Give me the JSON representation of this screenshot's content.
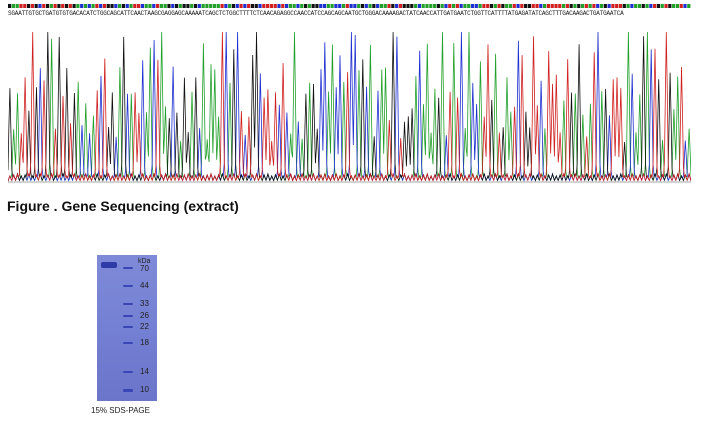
{
  "sequence_text": "SGAATTGTGCTGATGTGTGACACATCTGGCAGCATTCAACTAAGCGAGGAGCAAAAATCAGCTCTGGCTTTTCTCAACAGAGGCCAACCATCCAGCAGCAATGCTGGGACAAAAGACTATCAACCATTGATGAATCTGGTTCATTTTATGAGATATCAGCTTTGACAAGACTGATGAATCA",
  "figure_caption": "Figure . Gene Sequencing (extract)",
  "gel": {
    "unit_label": "kDa",
    "markers": [
      "70",
      "44",
      "33",
      "26",
      "22",
      "18",
      "14",
      "10"
    ],
    "caption": "15% SDS-PAGE"
  },
  "colors": {
    "A_trace": "#22a02a",
    "C_trace": "#1f2fd0",
    "G_trace": "#111111",
    "T_trace": "#d02020",
    "gel_background": "#7a85d5",
    "gel_band": "#2f3ba6"
  }
}
